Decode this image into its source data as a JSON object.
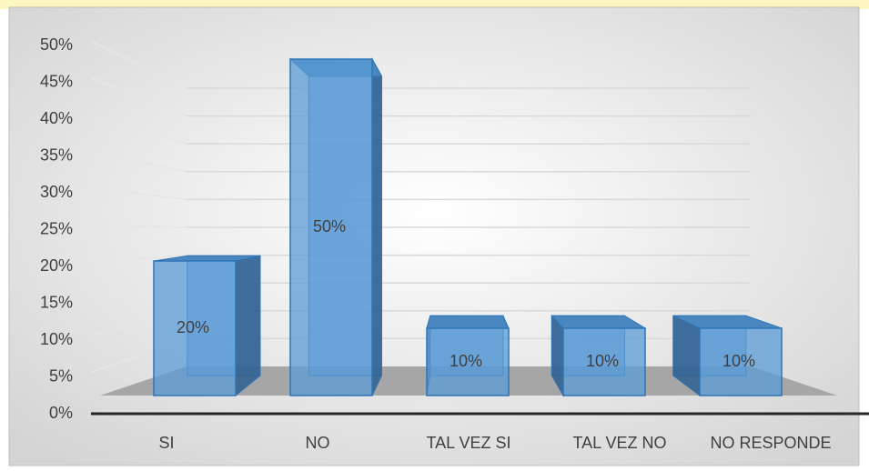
{
  "chart_data": {
    "type": "bar3d",
    "categories": [
      "SI",
      "NO",
      "TAL VEZ SI",
      "TAL VEZ NO",
      "NO RESPONDE"
    ],
    "values": [
      20,
      50,
      10,
      10,
      10
    ],
    "value_labels": [
      "20%",
      "50%",
      "10%",
      "10%",
      "10%"
    ],
    "color": "#5b9bd5",
    "ylim": [
      0,
      50
    ],
    "yticks": [
      {
        "value": 0,
        "label": "0%"
      },
      {
        "value": 5,
        "label": "5%"
      },
      {
        "value": 10,
        "label": "10%"
      },
      {
        "value": 15,
        "label": "15%"
      },
      {
        "value": 20,
        "label": "20%"
      },
      {
        "value": 25,
        "label": "25%"
      },
      {
        "value": 30,
        "label": "30%"
      },
      {
        "value": 35,
        "label": "35%"
      },
      {
        "value": 40,
        "label": "40%"
      },
      {
        "value": 45,
        "label": "45%"
      },
      {
        "value": 50,
        "label": "50%"
      }
    ],
    "grid": true
  }
}
